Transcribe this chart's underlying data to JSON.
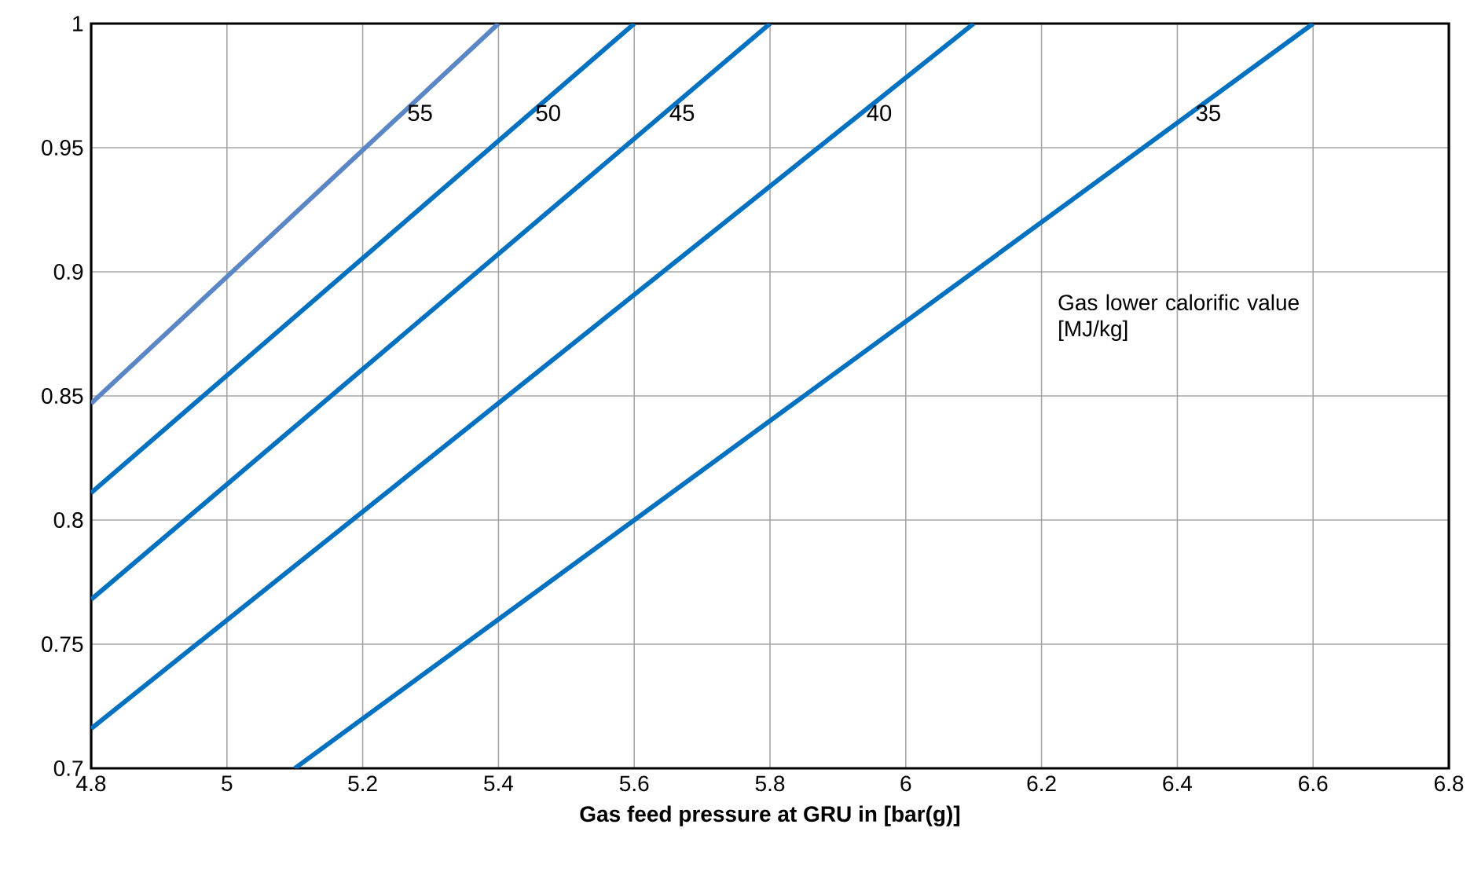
{
  "chart_data": {
    "type": "line",
    "xlabel": "Gas feed pressure at GRU in [bar(g)]",
    "legend_title": "Gas lower calorific value [MJ/kg]",
    "xlim": [
      4.8,
      6.8
    ],
    "ylim": [
      0.7,
      1
    ],
    "xticks": [
      4.8,
      5,
      5.2,
      5.4,
      5.6,
      5.8,
      6,
      6.2,
      6.4,
      6.6,
      6.8
    ],
    "yticks": [
      0.7,
      0.75,
      0.8,
      0.85,
      0.9,
      0.95,
      1
    ],
    "grid": true,
    "series": [
      {
        "name": "55",
        "color": "#5b86c5",
        "x": [
          4.8,
          5.4
        ],
        "values": [
          0.847,
          1.0
        ]
      },
      {
        "name": "50",
        "color": "#0070c0",
        "x": [
          4.8,
          5.6
        ],
        "values": [
          0.811,
          1.0
        ]
      },
      {
        "name": "45",
        "color": "#0070c0",
        "x": [
          4.8,
          5.8
        ],
        "values": [
          0.768,
          1.0
        ]
      },
      {
        "name": "40",
        "color": "#0070c0",
        "x": [
          4.8,
          6.1
        ],
        "values": [
          0.716,
          1.0
        ]
      },
      {
        "name": "35",
        "color": "#0070c0",
        "x": [
          5.1,
          6.6
        ],
        "values": [
          0.7,
          1.0
        ]
      }
    ]
  }
}
